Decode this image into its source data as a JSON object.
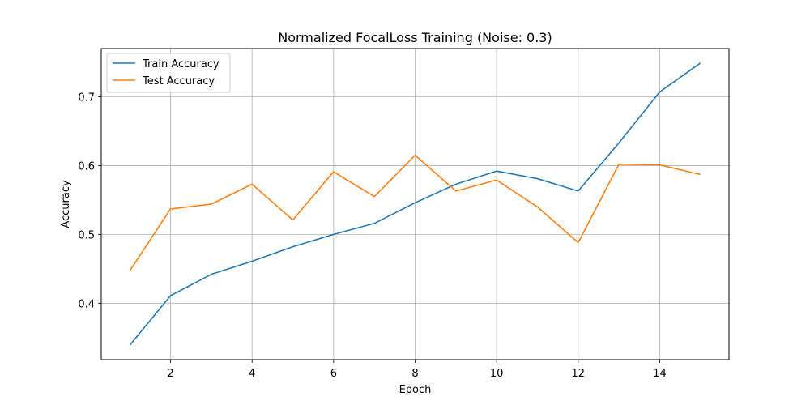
{
  "chart_data": {
    "type": "line",
    "title": "Normalized FocalLoss Training (Noise: 0.3)",
    "xlabel": "Epoch",
    "ylabel": "Accuracy",
    "x": [
      1,
      2,
      3,
      4,
      5,
      6,
      7,
      8,
      9,
      10,
      11,
      12,
      13,
      14,
      15
    ],
    "xlim": [
      0.3,
      15.7
    ],
    "ylim": [
      0.318,
      0.77
    ],
    "xticks": [
      2,
      4,
      6,
      8,
      10,
      12,
      14
    ],
    "yticks": [
      0.4,
      0.5,
      0.6,
      0.7
    ],
    "xtick_labels": [
      "2",
      "4",
      "6",
      "8",
      "10",
      "12",
      "14"
    ],
    "ytick_labels": [
      "0.4",
      "0.5",
      "0.6",
      "0.7"
    ],
    "grid": true,
    "legend_position": "top-left",
    "series": [
      {
        "name": "Train Accuracy",
        "color": "#1f77b4",
        "values": [
          0.339,
          0.411,
          0.442,
          0.461,
          0.482,
          0.5,
          0.516,
          0.546,
          0.573,
          0.592,
          0.581,
          0.563,
          0.633,
          0.707,
          0.749
        ]
      },
      {
        "name": "Test Accuracy",
        "color": "#ff7f0e",
        "values": [
          0.447,
          0.537,
          0.544,
          0.573,
          0.521,
          0.591,
          0.555,
          0.615,
          0.563,
          0.579,
          0.54,
          0.488,
          0.602,
          0.601,
          0.587
        ]
      }
    ]
  }
}
